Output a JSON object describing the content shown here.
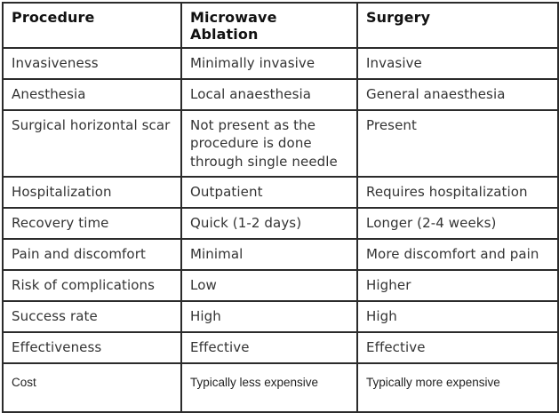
{
  "table": {
    "columns": [
      {
        "key": "feature",
        "label": "Procedure"
      },
      {
        "key": "mwa",
        "label": "Microwave Ablation"
      },
      {
        "key": "surgery",
        "label": "Surgery"
      }
    ],
    "rows": [
      {
        "feature": "Invasiveness",
        "mwa": "Minimally invasive",
        "surgery": "Invasive"
      },
      {
        "feature": "Anesthesia",
        "mwa": "Local anaesthesia",
        "surgery": "General anaesthesia"
      },
      {
        "feature": "Surgical horizontal scar",
        "mwa": "Not present as the procedure is done through single needle",
        "surgery": "Present"
      },
      {
        "feature": "Hospitalization",
        "mwa": "Outpatient",
        "surgery": "Requires hospitalization"
      },
      {
        "feature": "Recovery time",
        "mwa": "Quick (1-2 days)",
        "surgery": "Longer (2-4 weeks)"
      },
      {
        "feature": "Pain and discomfort",
        "mwa": "Minimal",
        "surgery": "More discomfort and pain"
      },
      {
        "feature": "Risk of complications",
        "mwa": "Low",
        "surgery": "Higher"
      },
      {
        "feature": "Success rate",
        "mwa": "High",
        "surgery": "High"
      },
      {
        "feature": "Effectiveness",
        "mwa": "Effective",
        "surgery": "Effective"
      },
      {
        "feature": "Cost",
        "mwa": "Typically less expensive",
        "surgery": "Typically more expensive"
      }
    ],
    "colors": {
      "border": "#2b2b2b",
      "header_text": "#111111",
      "body_text": "#333333",
      "background": "#ffffff"
    }
  }
}
